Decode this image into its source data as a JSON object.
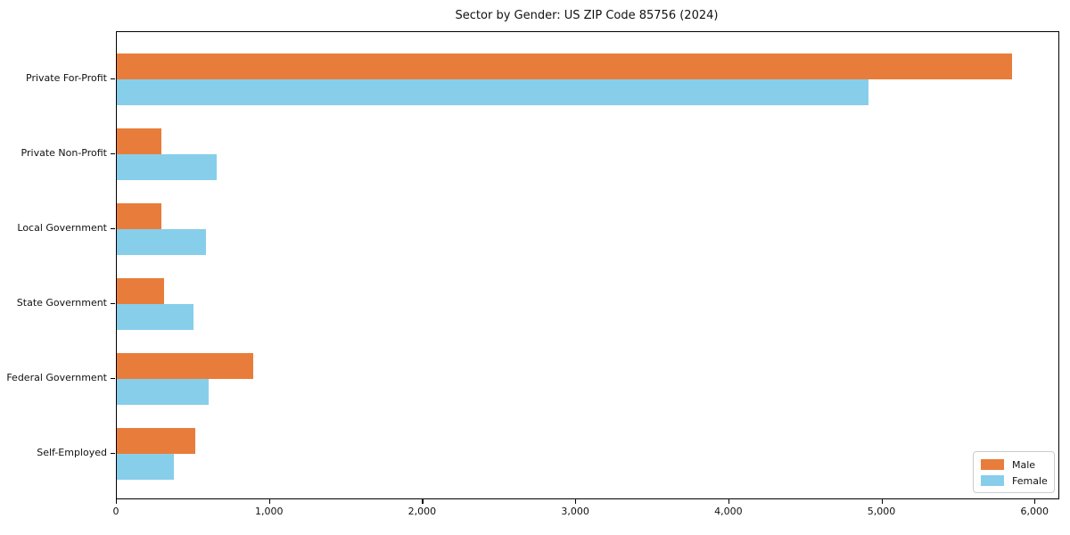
{
  "chart_data": {
    "type": "bar",
    "orientation": "horizontal",
    "title": "Sector by Gender: US ZIP Code 85756 (2024)",
    "categories": [
      "Private For-Profit",
      "Private Non-Profit",
      "Local Government",
      "State Government",
      "Federal Government",
      "Self-Employed"
    ],
    "series": [
      {
        "name": "Male",
        "color": "#e87d3b",
        "values": [
          5850,
          290,
          290,
          310,
          890,
          515
        ]
      },
      {
        "name": "Female",
        "color": "#87ceeb",
        "values": [
          4910,
          650,
          580,
          500,
          600,
          370
        ]
      }
    ],
    "xlabel": "",
    "ylabel": "",
    "xlim": [
      0,
      6150
    ],
    "x_ticks": [
      0,
      1000,
      2000,
      3000,
      4000,
      5000,
      6000
    ],
    "x_tick_labels": [
      "0",
      "1,000",
      "2,000",
      "3,000",
      "4,000",
      "5,000",
      "6,000"
    ],
    "grid": false,
    "legend": {
      "position": "lower-right",
      "items": [
        "Male",
        "Female"
      ]
    }
  }
}
